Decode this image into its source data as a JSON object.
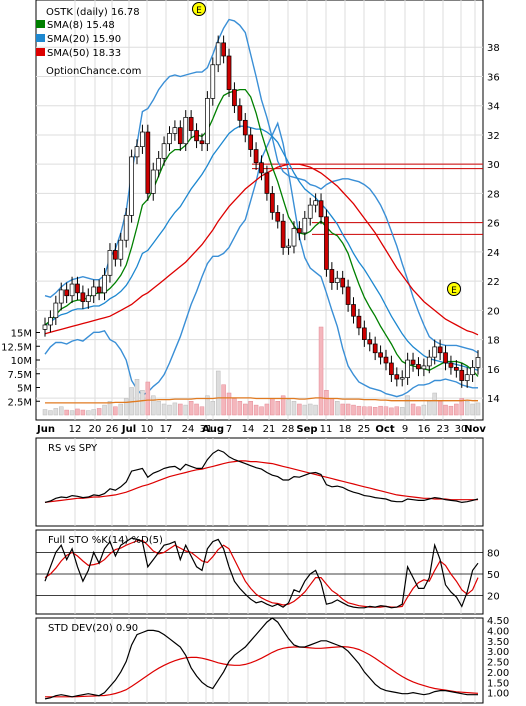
{
  "chart_data": {
    "type": "line",
    "ticker_label": "OSTK (daily) 16.78",
    "source": "OptionChance.com",
    "legend": [
      {
        "label": "SMA(8) 15.48",
        "color": "#008000"
      },
      {
        "label": "SMA(20) 15.90",
        "color": "#1e88d0"
      },
      {
        "label": "SMA(50) 18.33",
        "color": "#dd0000"
      }
    ],
    "earnings_marker": "E",
    "price_axis": {
      "ylim": [
        12.5,
        40
      ],
      "ticks": [
        "14",
        "16",
        "18",
        "20",
        "22",
        "24",
        "26",
        "28",
        "30",
        "32",
        "34",
        "36",
        "38"
      ]
    },
    "volume_axis": {
      "ylim": [
        0,
        16
      ],
      "ticks": [
        "2.5M",
        "5M",
        "7.5M",
        "10M",
        "12.5M",
        "15M"
      ]
    },
    "x_labels": [
      "Jun",
      "12",
      "20",
      "26",
      "Jul",
      "10",
      "17",
      "24",
      "31",
      "Aug",
      "7",
      "14",
      "21",
      "28",
      "Sep",
      "11",
      "18",
      "25",
      "Oct",
      "9",
      "16",
      "23",
      "30",
      "Nov"
    ],
    "bold_x_labels": [
      "Jun",
      "Jul",
      "Aug",
      "Sep",
      "Oct",
      "Nov"
    ],
    "horizontal_levels": [
      {
        "value": 30.0,
        "color": "#cc0000"
      },
      {
        "value": 29.7,
        "color": "#cc0000"
      },
      {
        "value": 26.0,
        "color": "#cc0000"
      },
      {
        "value": 25.2,
        "color": "#cc0000"
      }
    ],
    "close": [
      19.0,
      19.5,
      20.5,
      21.4,
      21.0,
      21.8,
      21.2,
      20.6,
      21.0,
      21.6,
      21.2,
      22.4,
      24.1,
      23.5,
      24.8,
      26.5,
      30.5,
      31.2,
      32.2,
      28.0,
      29.6,
      30.4,
      31.4,
      32.1,
      32.5,
      31.4,
      33.2,
      32.3,
      31.6,
      31.4,
      34.5,
      36.8,
      38.3,
      37.4,
      35.1,
      34.0,
      33.0,
      32.0,
      31.0,
      30.1,
      29.4,
      28.0,
      26.7,
      26.1,
      24.3,
      24.4,
      25.6,
      25.3,
      26.3,
      27.2,
      27.5,
      26.4,
      22.8,
      21.9,
      22.2,
      21.6,
      20.4,
      19.6,
      18.8,
      18.0,
      17.7,
      17.1,
      16.8,
      16.4,
      15.6,
      15.3,
      15.4,
      16.6,
      16.3,
      16.0,
      16.2,
      16.8,
      17.5,
      17.1,
      16.4,
      16.1,
      15.9,
      15.2,
      15.6,
      16.1,
      16.78
    ],
    "series": [
      {
        "name": "SMA(8)",
        "values": [
          19.0,
          19.3,
          19.7,
          20.1,
          20.3,
          20.6,
          20.7,
          20.7,
          20.9,
          21.1,
          21.2,
          21.2,
          21.5,
          21.9,
          22.4,
          23.1,
          24.3,
          25.7,
          27.2,
          27.6,
          28.3,
          29.2,
          30.1,
          30.7,
          31.0,
          31.0,
          31.3,
          31.8,
          32.0,
          31.9,
          32.3,
          33.1,
          34.0,
          34.7,
          34.9,
          35.0,
          35.1,
          35.1,
          34.6,
          33.5,
          32.1,
          30.9,
          29.8,
          28.8,
          27.6,
          26.4,
          25.8,
          25.3,
          25.2,
          25.4,
          25.8,
          26.1,
          25.7,
          25.3,
          25.1,
          24.6,
          23.9,
          22.8,
          21.8,
          20.9,
          20.2,
          19.6,
          18.9,
          18.3,
          17.7,
          17.0,
          16.5,
          16.3,
          16.2,
          16.1,
          16.0,
          15.9,
          16.1,
          16.3,
          16.5,
          16.5,
          16.5,
          16.4,
          16.2,
          15.9,
          15.48
        ]
      },
      {
        "name": "SMA(20)",
        "values": [
          19.0,
          19.2,
          19.5,
          19.7,
          19.8,
          20.0,
          20.1,
          20.1,
          20.2,
          20.3,
          20.3,
          20.5,
          20.8,
          21.0,
          21.3,
          21.7,
          22.3,
          23.0,
          23.9,
          24.1,
          24.6,
          25.1,
          25.6,
          26.2,
          26.7,
          27.1,
          27.7,
          28.3,
          28.8,
          29.3,
          29.9,
          30.6,
          31.1,
          31.6,
          32.1,
          32.4,
          32.6,
          32.6,
          32.5,
          32.4,
          32.4,
          32.2,
          31.9,
          31.5,
          30.8,
          30.1,
          29.4,
          28.8,
          28.3,
          28.0,
          27.7,
          27.3,
          26.9,
          26.4,
          25.9,
          25.2,
          24.6,
          23.9,
          23.3,
          22.8,
          22.2,
          21.6,
          21.0,
          20.3,
          19.6,
          19.0,
          18.4,
          17.9,
          17.5,
          17.2,
          16.9,
          16.7,
          16.6,
          16.5,
          16.4,
          16.4,
          16.3,
          16.2,
          16.1,
          16.0,
          15.9
        ]
      },
      {
        "name": "SMA(50)",
        "values": [
          18.4,
          18.5,
          18.6,
          18.7,
          18.8,
          18.9,
          19.0,
          19.1,
          19.2,
          19.3,
          19.4,
          19.5,
          19.6,
          19.8,
          20.0,
          20.2,
          20.4,
          20.7,
          21.0,
          21.2,
          21.5,
          21.8,
          22.1,
          22.4,
          22.7,
          23.0,
          23.3,
          23.7,
          24.1,
          24.5,
          25.0,
          25.5,
          26.1,
          26.6,
          27.1,
          27.5,
          27.9,
          28.3,
          28.6,
          28.9,
          29.2,
          29.4,
          29.6,
          29.8,
          29.9,
          30.0,
          30.0,
          30.0,
          29.9,
          29.8,
          29.6,
          29.4,
          29.1,
          28.8,
          28.5,
          28.1,
          27.7,
          27.3,
          26.8,
          26.3,
          25.8,
          25.3,
          24.7,
          24.1,
          23.5,
          22.9,
          22.4,
          21.9,
          21.4,
          21.0,
          20.6,
          20.3,
          20.0,
          19.7,
          19.4,
          19.2,
          19.0,
          18.8,
          18.6,
          18.5,
          18.33
        ]
      },
      {
        "name": "BB Upper",
        "values": [
          21.0,
          20.9,
          21.2,
          21.6,
          21.9,
          22.1,
          22.2,
          22.3,
          22.2,
          22.1,
          22.1,
          22.4,
          23.6,
          24.2,
          25.3,
          26.8,
          29.4,
          31.4,
          33.6,
          33.8,
          34.4,
          35.1,
          35.6,
          36.0,
          36.1,
          36.0,
          36.1,
          36.2,
          36.3,
          36.3,
          36.6,
          37.5,
          38.5,
          39.3,
          39.9,
          39.8,
          39.5,
          39.0,
          37.5,
          36.0,
          34.4,
          33.2,
          31.8,
          30.2,
          29.5,
          29.2,
          29.1,
          29.0,
          28.9,
          28.6,
          28.5,
          28.3,
          28.6,
          28.8,
          28.9,
          29.0,
          29.0,
          28.9,
          28.8,
          28.6,
          28.3,
          27.8,
          27.2,
          26.4,
          25.4,
          24.4,
          23.2,
          22.1,
          20.9,
          19.9,
          19.0,
          18.2,
          17.9,
          17.7,
          17.6,
          17.6,
          17.6,
          17.5,
          17.4,
          17.3,
          17.1
        ]
      },
      {
        "name": "BB Lower",
        "values": [
          17.0,
          17.5,
          17.8,
          17.8,
          17.7,
          17.9,
          18.0,
          17.9,
          18.2,
          18.5,
          18.5,
          18.6,
          18.0,
          17.8,
          17.3,
          16.6,
          15.2,
          14.6,
          14.2,
          14.4,
          14.8,
          15.1,
          15.6,
          16.4,
          17.3,
          18.2,
          19.3,
          20.4,
          21.3,
          22.3,
          23.2,
          23.7,
          23.7,
          23.9,
          24.3,
          25.0,
          25.7,
          26.2,
          27.5,
          28.8,
          30.4,
          31.2,
          32.0,
          32.8,
          31.4,
          29.4,
          27.2,
          25.0,
          23.6,
          22.9,
          22.6,
          22.3,
          21.2,
          20.0,
          18.9,
          17.4,
          16.2,
          15.6,
          15.1,
          14.9,
          14.7,
          14.6,
          14.5,
          14.3,
          14.2,
          14.1,
          14.2,
          14.4,
          14.7,
          14.9,
          14.9,
          15.0,
          15.2,
          15.2,
          15.3,
          15.2,
          15.1,
          14.9,
          14.8,
          14.7,
          14.7
        ]
      }
    ],
    "volume_m": [
      1.0,
      0.8,
      1.2,
      1.5,
      0.9,
      0.8,
      1.1,
      0.9,
      0.8,
      1.0,
      1.2,
      1.8,
      2.5,
      1.5,
      2.0,
      3.0,
      5.0,
      6.5,
      4.5,
      6.0,
      3.5,
      2.5,
      2.0,
      1.8,
      2.2,
      2.0,
      1.8,
      2.5,
      2.0,
      1.5,
      3.5,
      2.5,
      8.0,
      5.5,
      4.0,
      3.0,
      2.5,
      2.0,
      2.5,
      1.8,
      1.5,
      2.0,
      3.0,
      2.5,
      3.5,
      2.8,
      2.5,
      2.0,
      1.8,
      2.0,
      1.8,
      16.0,
      4.5,
      3.0,
      2.5,
      2.0,
      2.0,
      1.8,
      1.6,
      1.5,
      1.5,
      1.4,
      1.6,
      1.5,
      1.3,
      1.5,
      1.4,
      3.5,
      2.0,
      1.5,
      1.8,
      2.5,
      4.0,
      2.5,
      1.8,
      1.6,
      2.0,
      3.0,
      2.5,
      2.0,
      2.2
    ],
    "volume_avg_m": [
      2.2,
      2.2,
      2.2,
      2.2,
      2.2,
      2.2,
      2.2,
      2.2,
      2.2,
      2.2,
      2.2,
      2.2,
      2.2,
      2.3,
      2.3,
      2.3,
      2.4,
      2.5,
      2.6,
      2.7,
      2.7,
      2.8,
      2.8,
      2.8,
      2.9,
      2.9,
      2.9,
      2.9,
      3.0,
      3.0,
      3.0,
      3.0,
      3.1,
      3.1,
      3.1,
      3.1,
      3.1,
      3.1,
      3.1,
      3.0,
      3.0,
      3.0,
      3.0,
      3.0,
      3.0,
      3.0,
      3.0,
      2.9,
      2.9,
      3.0,
      3.1,
      3.1,
      3.0,
      3.0,
      3.0,
      2.9,
      2.9,
      2.9,
      2.9,
      2.8,
      2.8,
      2.8,
      2.7,
      2.7,
      2.6,
      2.6,
      2.6,
      2.6,
      2.6,
      2.6,
      2.6,
      2.6,
      2.6,
      2.6,
      2.6,
      2.6,
      2.6,
      2.6,
      2.7,
      2.6,
      2.6
    ],
    "rs_panel": {
      "label": "RS vs SPY",
      "rs": [
        0.2,
        0.22,
        0.26,
        0.28,
        0.27,
        0.3,
        0.29,
        0.27,
        0.28,
        0.31,
        0.3,
        0.33,
        0.4,
        0.38,
        0.43,
        0.5,
        0.66,
        0.68,
        0.7,
        0.57,
        0.63,
        0.66,
        0.7,
        0.72,
        0.73,
        0.68,
        0.76,
        0.73,
        0.7,
        0.7,
        0.83,
        0.92,
        0.97,
        0.94,
        0.87,
        0.83,
        0.8,
        0.77,
        0.74,
        0.71,
        0.69,
        0.64,
        0.6,
        0.58,
        0.53,
        0.53,
        0.58,
        0.57,
        0.6,
        0.63,
        0.64,
        0.61,
        0.46,
        0.43,
        0.44,
        0.42,
        0.38,
        0.35,
        0.33,
        0.3,
        0.29,
        0.27,
        0.26,
        0.25,
        0.22,
        0.21,
        0.21,
        0.25,
        0.24,
        0.23,
        0.23,
        0.25,
        0.27,
        0.26,
        0.24,
        0.23,
        0.22,
        0.2,
        0.21,
        0.23,
        0.25
      ],
      "rs_avg": [
        0.2,
        0.21,
        0.22,
        0.23,
        0.24,
        0.25,
        0.26,
        0.26,
        0.27,
        0.28,
        0.28,
        0.29,
        0.3,
        0.31,
        0.33,
        0.35,
        0.38,
        0.41,
        0.44,
        0.46,
        0.49,
        0.52,
        0.55,
        0.58,
        0.6,
        0.62,
        0.64,
        0.66,
        0.68,
        0.69,
        0.71,
        0.73,
        0.75,
        0.77,
        0.79,
        0.8,
        0.81,
        0.81,
        0.8,
        0.8,
        0.79,
        0.78,
        0.77,
        0.75,
        0.73,
        0.71,
        0.69,
        0.67,
        0.65,
        0.63,
        0.61,
        0.59,
        0.57,
        0.55,
        0.53,
        0.51,
        0.49,
        0.47,
        0.45,
        0.43,
        0.41,
        0.39,
        0.37,
        0.35,
        0.33,
        0.31,
        0.3,
        0.29,
        0.28,
        0.27,
        0.26,
        0.26,
        0.25,
        0.25,
        0.25,
        0.24,
        0.24,
        0.24,
        0.24,
        0.24,
        0.24
      ]
    },
    "sto_panel": {
      "label": "Full STO %K(14) %D(5)",
      "ylim": [
        0,
        100
      ],
      "ticks": [
        "20",
        "50",
        "80"
      ],
      "levels": [
        20,
        50,
        80
      ],
      "k": [
        40,
        60,
        80,
        90,
        70,
        85,
        60,
        40,
        55,
        80,
        65,
        85,
        95,
        75,
        90,
        95,
        100,
        98,
        95,
        60,
        70,
        80,
        90,
        92,
        95,
        70,
        90,
        75,
        60,
        55,
        85,
        95,
        98,
        85,
        60,
        40,
        30,
        22,
        15,
        10,
        12,
        8,
        5,
        8,
        4,
        10,
        28,
        25,
        40,
        50,
        55,
        38,
        8,
        10,
        14,
        10,
        6,
        4,
        3,
        3,
        5,
        4,
        6,
        5,
        3,
        4,
        8,
        60,
        45,
        30,
        30,
        45,
        90,
        70,
        35,
        25,
        18,
        5,
        25,
        55,
        65
      ],
      "d": [
        45,
        50,
        58,
        68,
        76,
        80,
        75,
        68,
        62,
        63,
        65,
        70,
        78,
        84,
        86,
        90,
        93,
        96,
        97,
        90,
        82,
        78,
        80,
        85,
        90,
        86,
        82,
        80,
        74,
        68,
        66,
        74,
        84,
        90,
        85,
        70,
        55,
        40,
        30,
        22,
        17,
        13,
        10,
        9,
        7,
        8,
        12,
        18,
        25,
        35,
        45,
        45,
        36,
        27,
        22,
        15,
        10,
        8,
        6,
        5,
        4,
        4,
        4,
        5,
        4,
        4,
        5,
        18,
        30,
        38,
        42,
        40,
        55,
        68,
        62,
        50,
        40,
        28,
        22,
        28,
        45
      ]
    },
    "std_panel": {
      "label": "STD DEV(20) 0.90",
      "ylim": [
        0.5,
        4.6
      ],
      "ticks": [
        "1.00",
        "1.50",
        "2.00",
        "2.50",
        "3.00",
        "3.50",
        "4.00",
        "4.50"
      ],
      "std": [
        0.7,
        0.75,
        0.85,
        0.9,
        0.85,
        0.8,
        0.85,
        0.9,
        0.95,
        0.9,
        0.85,
        1.0,
        1.3,
        1.6,
        2.0,
        2.5,
        3.3,
        3.8,
        3.9,
        4.0,
        4.0,
        3.95,
        3.8,
        3.6,
        3.4,
        3.2,
        2.8,
        2.2,
        1.8,
        1.5,
        1.3,
        1.2,
        1.6,
        2.0,
        2.5,
        2.8,
        3.0,
        3.2,
        3.5,
        3.8,
        4.1,
        4.4,
        4.6,
        4.4,
        4.0,
        3.6,
        3.3,
        3.2,
        3.2,
        3.3,
        3.4,
        3.5,
        3.5,
        3.4,
        3.3,
        3.2,
        3.0,
        2.7,
        2.4,
        2.0,
        1.7,
        1.4,
        1.2,
        1.1,
        1.05,
        1.0,
        0.95,
        0.95,
        1.0,
        0.95,
        0.9,
        0.95,
        1.05,
        1.1,
        1.1,
        1.05,
        1.0,
        0.95,
        0.9,
        0.9,
        0.9
      ],
      "std_avg": [
        0.8,
        0.8,
        0.8,
        0.8,
        0.8,
        0.8,
        0.81,
        0.82,
        0.83,
        0.84,
        0.85,
        0.86,
        0.9,
        0.96,
        1.04,
        1.14,
        1.3,
        1.48,
        1.66,
        1.84,
        2.02,
        2.18,
        2.32,
        2.44,
        2.54,
        2.62,
        2.68,
        2.7,
        2.7,
        2.66,
        2.6,
        2.52,
        2.44,
        2.38,
        2.34,
        2.32,
        2.32,
        2.36,
        2.44,
        2.54,
        2.66,
        2.8,
        2.94,
        3.06,
        3.14,
        3.18,
        3.2,
        3.2,
        3.18,
        3.16,
        3.14,
        3.14,
        3.16,
        3.18,
        3.2,
        3.22,
        3.2,
        3.16,
        3.08,
        2.96,
        2.82,
        2.66,
        2.48,
        2.3,
        2.12,
        1.94,
        1.78,
        1.64,
        1.52,
        1.42,
        1.34,
        1.26,
        1.2,
        1.16,
        1.12,
        1.08,
        1.04,
        1.02,
        1.0,
        0.98,
        0.97
      ]
    }
  }
}
